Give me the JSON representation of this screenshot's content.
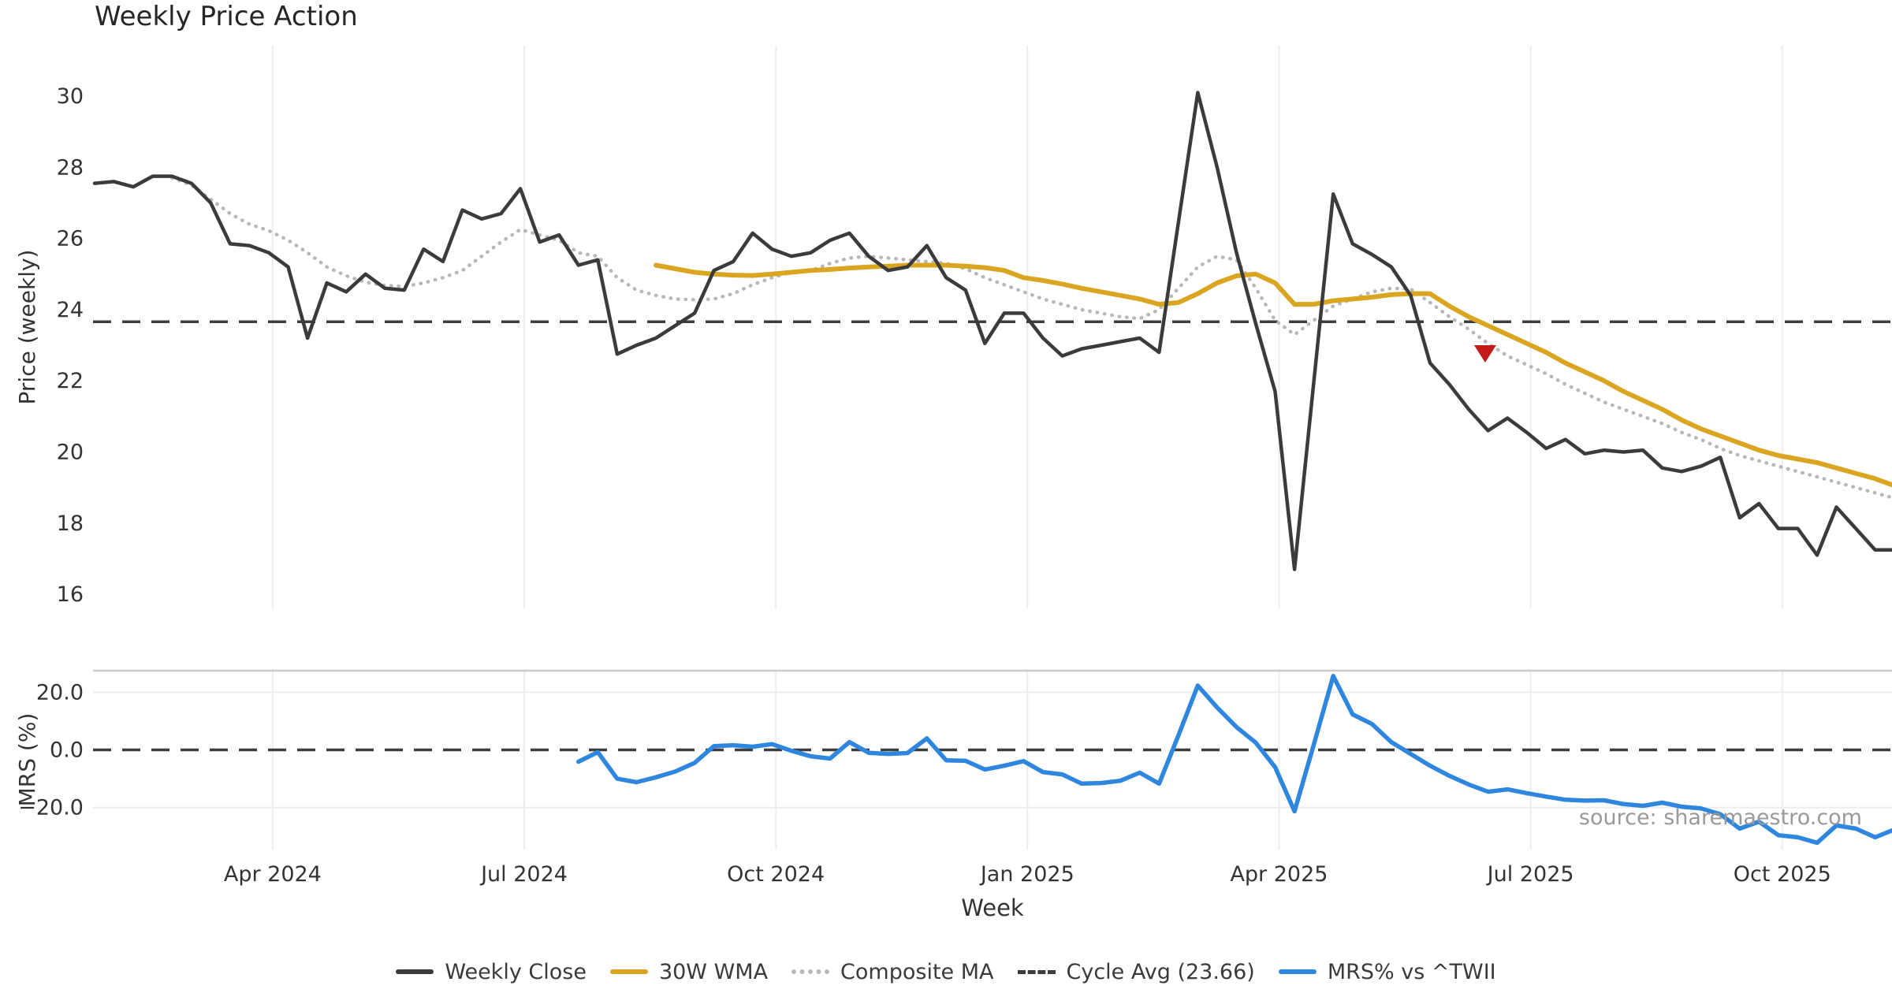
{
  "source_note": "source: sharemaestro.com",
  "colors": {
    "weekly_close": "#3b3b3b",
    "wma_30w": "#DAA520",
    "composite_ma": "#b8b8b8",
    "cycle_avg": "#3d3d3d",
    "mrs_line": "#2e86de",
    "sell_marker": "#c41a1a",
    "gridline": "#ededed",
    "panel_spine": "#cccccc",
    "tick_text": "#333333",
    "title_text": "#262626",
    "source_text": "#999999"
  },
  "chart_data": {
    "type": "line",
    "title": "Weekly Price Action",
    "x_axis": {
      "label": "Week",
      "tick_labels": [
        "Apr 2024",
        "Jul 2024",
        "Oct 2024",
        "Jan 2025",
        "Apr 2025",
        "Jul 2025",
        "Oct 2025"
      ],
      "tick_week_index": [
        9.2,
        22.2,
        35.2,
        48.2,
        61.2,
        74.2,
        87.2
      ],
      "total_weeks": 94
    },
    "panels": [
      {
        "name": "price",
        "ylabel": "Price (weekly)",
        "ylim": [
          15.6,
          31.4
        ],
        "yticks": [
          30,
          28,
          26,
          24,
          22,
          20,
          18,
          16
        ],
        "ytick_labels": [
          "30",
          "28",
          "26",
          "24",
          "22",
          "20",
          "18",
          "16"
        ],
        "grid": "vertical-only",
        "series": [
          {
            "name": "Weekly Close",
            "style": "solid",
            "color_key": "weekly_close",
            "width": 4.5,
            "start_week": 0,
            "values": [
              27.55,
              27.6,
              27.45,
              27.75,
              27.75,
              27.55,
              27.0,
              25.85,
              25.8,
              25.6,
              25.2,
              23.2,
              24.75,
              24.5,
              25.0,
              24.6,
              24.55,
              25.7,
              25.35,
              26.8,
              26.55,
              26.7,
              27.4,
              25.9,
              26.1,
              25.25,
              25.4,
              22.75,
              23.0,
              23.2,
              23.55,
              23.9,
              25.1,
              25.35,
              26.15,
              25.7,
              25.5,
              25.6,
              25.95,
              26.15,
              25.5,
              25.1,
              25.2,
              25.8,
              24.9,
              24.55,
              23.05,
              23.9,
              23.9,
              23.2,
              22.7,
              22.9,
              23.0,
              23.1,
              23.2,
              22.8,
              26.45,
              30.1,
              28.0,
              25.6,
              23.6,
              21.7,
              16.7,
              22.0,
              27.25,
              25.85,
              25.55,
              25.2,
              24.4,
              22.5,
              21.9,
              21.2,
              20.6,
              20.95,
              20.55,
              20.1,
              20.35,
              19.95,
              20.05,
              20.0,
              20.05,
              19.55,
              19.45,
              19.6,
              19.85,
              18.15,
              18.55,
              17.85,
              17.85,
              17.1,
              18.45,
              17.85,
              17.25,
              17.25
            ]
          },
          {
            "name": "30W WMA",
            "style": "solid",
            "color_key": "wma_30w",
            "width": 6,
            "start_week": 29,
            "values": [
              25.25,
              25.15,
              25.05,
              25.0,
              24.97,
              24.96,
              25.0,
              25.05,
              25.1,
              25.13,
              25.17,
              25.2,
              25.22,
              25.25,
              25.25,
              25.25,
              25.22,
              25.18,
              25.1,
              24.9,
              24.82,
              24.72,
              24.6,
              24.5,
              24.4,
              24.3,
              24.15,
              24.2,
              24.45,
              24.75,
              24.95,
              25.0,
              24.75,
              24.15,
              24.15,
              24.25,
              24.3,
              24.35,
              24.42,
              24.45,
              24.45,
              24.1,
              23.8,
              23.55,
              23.3,
              23.05,
              22.8,
              22.5,
              22.25,
              22.0,
              21.7,
              21.45,
              21.2,
              20.9,
              20.65,
              20.45,
              20.25,
              20.05,
              19.9,
              19.8,
              19.7,
              19.55,
              19.4,
              19.25,
              19.05
            ]
          },
          {
            "name": "Composite MA",
            "style": "dotted",
            "color_key": "composite_ma",
            "width": 4.5,
            "start_week": 4,
            "values": [
              27.7,
              27.5,
              27.1,
              26.7,
              26.4,
              26.22,
              25.95,
              25.6,
              25.2,
              24.95,
              24.77,
              24.68,
              24.65,
              24.75,
              24.9,
              25.1,
              25.5,
              25.9,
              26.25,
              26.1,
              25.95,
              25.6,
              25.5,
              24.9,
              24.55,
              24.4,
              24.3,
              24.28,
              24.3,
              24.45,
              24.7,
              24.9,
              25.05,
              25.1,
              25.3,
              25.45,
              25.5,
              25.45,
              25.4,
              25.35,
              25.3,
              25.15,
              24.9,
              24.7,
              24.5,
              24.3,
              24.15,
              24.0,
              23.9,
              23.8,
              23.75,
              24.0,
              24.6,
              25.2,
              25.5,
              25.4,
              24.6,
              23.7,
              23.3,
              23.7,
              24.1,
              24.3,
              24.5,
              24.6,
              24.58,
              24.2,
              23.8,
              23.45,
              23.05,
              22.7,
              22.45,
              22.2,
              21.9,
              21.65,
              21.4,
              21.2,
              21.0,
              20.8,
              20.55,
              20.35,
              20.1,
              19.9,
              19.75,
              19.6,
              19.45,
              19.3,
              19.15,
              19.0,
              18.85,
              18.7
            ]
          },
          {
            "name": "Cycle Avg",
            "style": "dashed",
            "color_key": "cycle_avg",
            "width": 3.5,
            "constant": 23.66
          }
        ],
        "markers": [
          {
            "shape": "triangle-down",
            "color_key": "sell_marker",
            "week": 71.85,
            "price": 22.78
          }
        ]
      },
      {
        "name": "mrs",
        "ylabel": "MRS (%)",
        "ylim": [
          -34.6,
          27.5
        ],
        "yticks": [
          20,
          0,
          -20
        ],
        "ytick_labels": [
          "20.0",
          "0.0",
          "−20.0"
        ],
        "zero_line": {
          "style": "dashed",
          "color_key": "cycle_avg",
          "value": 0
        },
        "grid": "vertical-and-horizontal",
        "series": [
          {
            "name": "MRS% vs ^TWII",
            "style": "solid",
            "color_key": "mrs_line",
            "width": 5.5,
            "start_week": 25,
            "values": [
              -4.1,
              -0.8,
              -10.0,
              -11.2,
              -9.5,
              -7.5,
              -4.5,
              1.3,
              1.6,
              1.1,
              2.0,
              -0.3,
              -2.2,
              -3.0,
              2.7,
              -1.0,
              -1.4,
              -1.1,
              4.0,
              -3.6,
              -3.8,
              -6.8,
              -5.5,
              -3.9,
              -7.7,
              -8.5,
              -11.7,
              -11.5,
              -10.7,
              -7.9,
              -11.7,
              5.0,
              22.3,
              14.7,
              7.9,
              2.5,
              -6.0,
              -21.3,
              2.0,
              25.6,
              12.3,
              9.0,
              2.7,
              -1.4,
              -5.5,
              -9.0,
              -12.0,
              -14.5,
              -13.7,
              -15.0,
              -16.2,
              -17.3,
              -17.6,
              -17.5,
              -18.8,
              -19.4,
              -18.3,
              -19.7,
              -20.3,
              -22.3,
              -27.3,
              -24.9,
              -29.6,
              -30.3,
              -32.2,
              -26.2,
              -27.3,
              -30.3,
              -27.6
            ]
          }
        ]
      }
    ],
    "legend": {
      "position": "bottom-center",
      "entries": [
        {
          "label": "Weekly Close",
          "swatch": "solid",
          "color_key": "weekly_close"
        },
        {
          "label": "30W WMA",
          "swatch": "solid",
          "color_key": "wma_30w"
        },
        {
          "label": "Composite MA",
          "swatch": "dotted",
          "color_key": "composite_ma"
        },
        {
          "label": "Cycle Avg (23.66)",
          "swatch": "dashed",
          "color_key": "cycle_avg"
        },
        {
          "label": "MRS% vs ^TWII",
          "swatch": "solid",
          "color_key": "mrs_line"
        }
      ]
    }
  }
}
